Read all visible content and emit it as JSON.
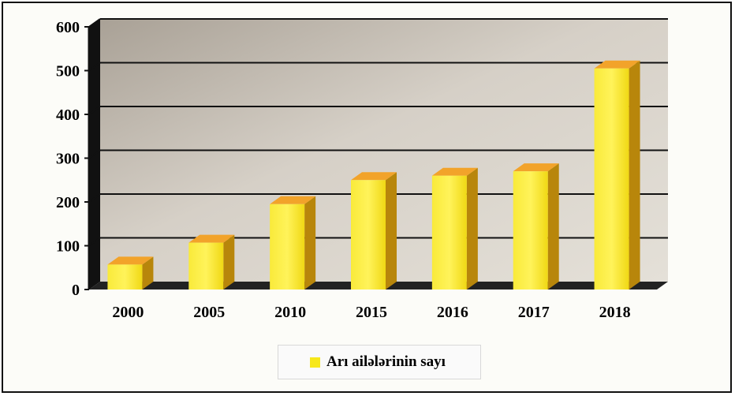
{
  "chart_data": {
    "type": "bar",
    "style": "3d-column",
    "categories": [
      "2000",
      "2005",
      "2010",
      "2015",
      "2016",
      "2017",
      "2018"
    ],
    "series": [
      {
        "name": "Arı ailələrinin sayı",
        "values": [
          57,
          107,
          195,
          250,
          260,
          270,
          505
        ]
      }
    ],
    "ylim": [
      0,
      600
    ],
    "yticks": [
      "0",
      "100",
      "200",
      "300",
      "400",
      "500",
      "600"
    ],
    "title": "",
    "xlabel": "",
    "ylabel": "",
    "grid": true,
    "legend": "bottom",
    "colors": {
      "bar_front": "#f6e61c",
      "bar_top": "#f2a32a",
      "bar_side": "#b8860b",
      "wall": "#bdb6ac",
      "gridline": "#111111"
    }
  }
}
